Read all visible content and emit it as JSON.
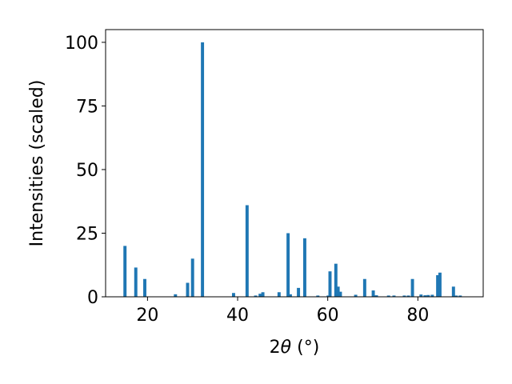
{
  "chart_data": {
    "type": "bar",
    "xlabel_main": "2",
    "xlabel_theta": "θ",
    "xlabel_unit": " (°)",
    "ylabel": "Intensities (scaled)",
    "xlim": [
      10.7,
      94.5
    ],
    "ylim": [
      0,
      105
    ],
    "xticks": [
      20,
      40,
      60,
      80
    ],
    "yticks": [
      0,
      25,
      50,
      75,
      100
    ],
    "grid": false,
    "bar_color": "#1f77b4",
    "bar_width": 0.7,
    "x": [
      15.0,
      17.4,
      19.4,
      26.2,
      28.9,
      30.0,
      32.2,
      39.1,
      42.1,
      44.0,
      45.0,
      45.6,
      49.2,
      51.2,
      51.7,
      53.5,
      54.9,
      57.8,
      60.1,
      60.5,
      61.8,
      62.3,
      62.8,
      66.2,
      68.2,
      70.1,
      70.8,
      73.5,
      74.7,
      77.0,
      77.9,
      78.8,
      80.7,
      81.6,
      82.3,
      83.2,
      84.4,
      84.9,
      87.9,
      88.5,
      89.4
    ],
    "values": [
      20,
      11.5,
      7,
      1,
      5.5,
      15,
      100,
      1.5,
      36,
      0.5,
      1.2,
      1.8,
      1.8,
      25,
      1,
      3.5,
      23,
      0.5,
      0.5,
      10,
      13,
      4,
      2,
      0.8,
      7,
      2.5,
      0.6,
      0.5,
      0.5,
      0.5,
      0.5,
      7,
      0.9,
      0.6,
      0.7,
      0.8,
      8.5,
      9.5,
      4,
      0.5,
      0.5
    ]
  }
}
